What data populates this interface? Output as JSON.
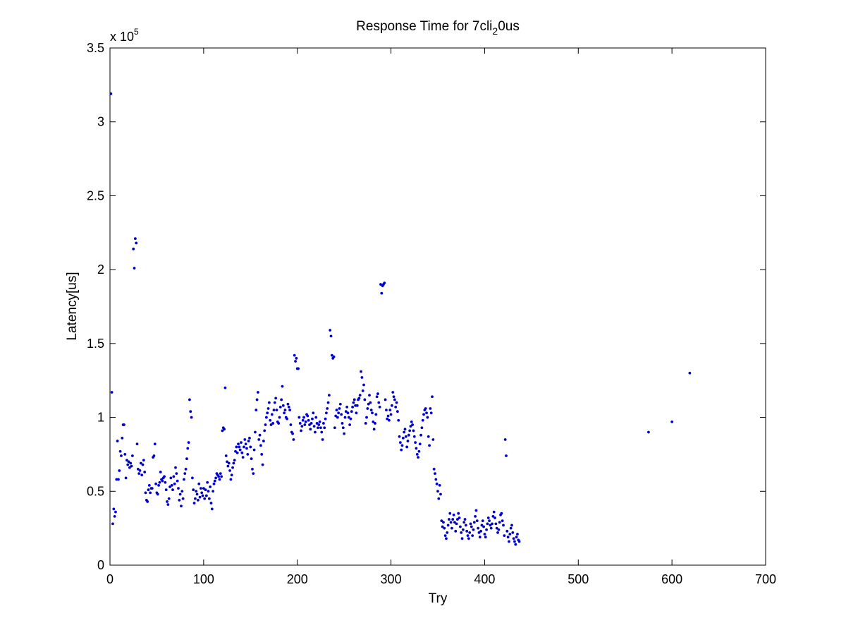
{
  "chart_data": {
    "type": "scatter",
    "title": {
      "prefix": "Response Time for 7cli",
      "subscript": "2",
      "suffix": "0us"
    },
    "xlabel": "Try",
    "ylabel": "Latency[us]",
    "exponent_label": "x 10",
    "exponent_power": "5",
    "xlim": [
      0,
      700
    ],
    "ylim": [
      0,
      3.5
    ],
    "x_ticks": [
      0,
      100,
      200,
      300,
      400,
      500,
      600,
      700
    ],
    "y_ticks": [
      0,
      0.5,
      1,
      1.5,
      2,
      2.5,
      3,
      3.5
    ],
    "x_tick_labels": [
      "0",
      "100",
      "200",
      "300",
      "400",
      "500",
      "600",
      "700"
    ],
    "y_tick_labels": [
      "0",
      "0.5",
      "1",
      "1.5",
      "2",
      "2.5",
      "3",
      "3.5"
    ],
    "grid": false,
    "marker_color": "#0000cc",
    "series": [
      {
        "y": [
          3.19,
          1.17,
          0.28,
          0.38,
          0.33,
          0.36,
          0.58,
          0.84,
          0.58,
          0.64,
          0.77,
          0.74,
          0.86,
          0.95,
          0.95,
          0.75,
          0.59,
          0.71,
          0.68,
          0.7,
          0.66,
          0.69,
          0.67,
          0.74,
          2.14,
          2.01,
          2.21,
          2.18,
          0.82,
          0.65,
          0.62,
          0.64,
          0.69,
          0.61,
          0.68,
          0.71,
          0.63,
          0.49,
          0.44,
          0.43,
          0.51,
          0.54,
          0.49,
          0.52,
          0.52,
          0.73,
          0.74,
          0.82,
          0.55,
          0.49,
          0.48,
          0.54,
          0.56,
          0.63,
          0.58,
          0.57,
          0.59,
          0.6,
          0.56,
          0.51,
          0.43,
          0.41,
          0.45,
          0.53,
          0.59,
          0.54,
          0.51,
          0.6,
          0.55,
          0.66,
          0.62,
          0.57,
          0.52,
          0.44,
          0.48,
          0.4,
          0.5,
          0.45,
          0.58,
          0.62,
          0.65,
          0.72,
          0.79,
          0.83,
          1.12,
          1.04,
          1.0,
          0.59,
          0.51,
          0.42,
          0.45,
          0.5,
          0.48,
          0.44,
          0.55,
          0.46,
          0.52,
          0.49,
          0.47,
          0.52,
          0.45,
          0.51,
          0.47,
          0.56,
          0.5,
          0.45,
          0.53,
          0.42,
          0.38,
          0.5,
          0.55,
          0.57,
          0.59,
          0.62,
          0.61,
          0.6,
          0.58,
          0.62,
          0.6,
          0.91,
          0.93,
          0.92,
          1.2,
          0.74,
          0.7,
          0.67,
          0.69,
          0.64,
          0.58,
          0.61,
          0.66,
          0.69,
          0.71,
          0.77,
          0.8,
          0.76,
          0.82,
          0.8,
          0.78,
          0.83,
          0.76,
          0.73,
          0.8,
          0.85,
          0.82,
          0.79,
          0.75,
          0.84,
          0.86,
          0.8,
          0.72,
          0.65,
          0.62,
          0.78,
          0.9,
          1.05,
          1.12,
          1.17,
          0.85,
          0.88,
          0.81,
          0.75,
          0.68,
          0.84,
          0.91,
          0.95,
          1.0,
          1.03,
          1.06,
          1.1,
          0.98,
          0.95,
          1.02,
          0.96,
          1.05,
          1.1,
          1.13,
          1.05,
          0.97,
          0.96,
          1.0,
          1.07,
          1.12,
          1.21,
          1.08,
          1.03,
          1.05,
          1.0,
          0.99,
          1.09,
          1.07,
          1.05,
          0.95,
          0.9,
          0.89,
          0.85,
          1.42,
          1.38,
          1.4,
          1.33,
          1.33,
          1.0,
          0.96,
          0.91,
          0.94,
          0.98,
          1.0,
          0.95,
          0.97,
          1.02,
          1.01,
          0.98,
          0.95,
          0.92,
          0.96,
          0.99,
          1.03,
          0.94,
          0.9,
          1.0,
          0.96,
          0.93,
          0.95,
          0.97,
          0.93,
          0.9,
          0.85,
          0.96,
          0.93,
          0.99,
          1.03,
          1.06,
          1.1,
          1.15,
          1.59,
          1.55,
          1.42,
          1.4,
          1.41,
          0.93,
          1.01,
          1.05,
          1.0,
          1.03,
          1.06,
          1.09,
          1.02,
          0.96,
          0.93,
          0.89,
          1.0,
          1.04,
          1.07,
          1.03,
          1.0,
          0.95,
          0.99,
          1.04,
          1.07,
          1.1,
          1.12,
          1.08,
          1.03,
          1.08,
          1.12,
          1.13,
          1.15,
          1.31,
          1.27,
          1.18,
          1.22,
          1.12,
          0.96,
          1.0,
          1.06,
          1.09,
          1.15,
          1.1,
          1.05,
          1.03,
          0.97,
          0.92,
          0.96,
          1.02,
          1.14,
          1.16,
          1.1,
          1.07,
          1.9,
          1.84,
          1.89,
          1.9,
          1.91,
          1.12,
          1.05,
          0.99,
          1.01,
          0.98,
          1.05,
          1.02,
          1.08,
          1.17,
          1.14,
          1.12,
          1.07,
          1.1,
          1.04,
          0.98,
          0.87,
          0.83,
          0.78,
          0.81,
          0.86,
          0.9,
          0.92,
          0.87,
          0.8,
          0.84,
          0.88,
          0.91,
          0.94,
          0.97,
          0.95,
          0.91,
          0.87,
          0.83,
          0.79,
          0.75,
          0.73,
          0.77,
          0.82,
          0.88,
          0.93,
          0.98,
          1.02,
          1.05,
          1.06,
          1.03,
          1.0,
          0.87,
          0.81,
          1.06,
          1.03,
          1.14,
          0.85,
          0.65,
          0.62,
          0.58,
          0.55,
          0.5,
          0.45,
          0.54,
          0.48,
          0.3,
          0.26,
          0.29,
          0.25,
          0.2,
          0.18,
          0.22,
          0.27,
          0.31,
          0.35,
          0.29,
          0.25,
          0.31,
          0.34,
          0.29,
          0.23,
          0.28,
          0.31,
          0.35,
          0.32,
          0.26,
          0.22,
          0.18,
          0.24,
          0.29,
          0.31,
          0.27,
          0.23,
          0.2,
          0.18,
          0.22,
          0.28,
          0.26,
          0.2,
          0.24,
          0.29,
          0.33,
          0.37,
          0.3,
          0.25,
          0.22,
          0.19,
          0.23,
          0.27,
          0.3,
          0.26,
          0.21,
          0.19,
          0.24,
          0.28,
          0.32,
          0.3,
          0.27,
          0.25,
          0.28,
          0.33,
          0.36,
          0.32,
          0.28,
          0.25,
          0.22,
          0.24,
          0.29,
          0.34,
          0.35,
          0.3,
          0.27,
          0.2,
          0.85,
          0.74,
          0.23,
          0.19,
          0.16,
          0.21,
          0.25,
          0.27,
          0.22,
          0.18,
          0.16,
          0.14,
          0.19,
          0.21,
          0.17,
          0.16
        ],
        "extra_points": [
          [
            575,
            0.9
          ],
          [
            600,
            0.97
          ],
          [
            619,
            1.3
          ]
        ]
      }
    ]
  }
}
